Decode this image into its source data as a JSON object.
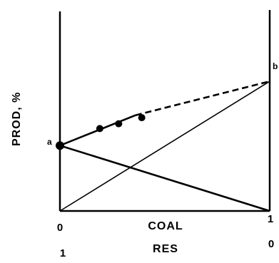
{
  "chart_data": {
    "type": "line",
    "ylabel": "PROD, %",
    "xlabel": "COAL",
    "x2label": "RES",
    "x_ticks": [
      "0",
      "1"
    ],
    "x2_ticks": [
      "1",
      "0"
    ],
    "left_end_label": "a",
    "right_end_label": "b",
    "xlim": [
      0,
      1
    ],
    "ylim": [
      0,
      1
    ],
    "grid": false,
    "series": [
      {
        "style": "solid",
        "x": [
          0,
          0.36
        ],
        "y": [
          0.54,
          0.79
        ]
      },
      {
        "style": "dashed",
        "x": [
          0.36,
          1
        ],
        "y": [
          0.79,
          1.07
        ]
      },
      {
        "style": "solid",
        "x": [
          0,
          1
        ],
        "y": [
          0.54,
          0
        ]
      },
      {
        "style": "solid",
        "x": [
          0,
          1
        ],
        "y": [
          0,
          1.07
        ]
      }
    ],
    "points": [
      {
        "x": 0,
        "y": 0.54
      },
      {
        "x": 0.19,
        "y": 0.68
      },
      {
        "x": 0.28,
        "y": 0.72
      },
      {
        "x": 0.39,
        "y": 0.77
      }
    ]
  }
}
